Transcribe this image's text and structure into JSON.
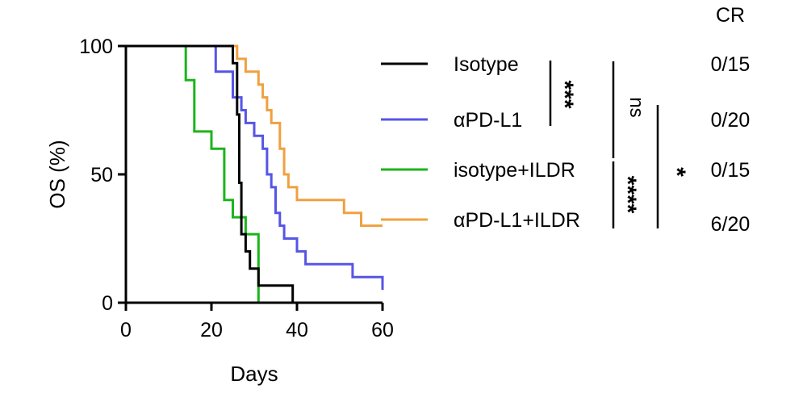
{
  "chart_data": {
    "type": "line",
    "subtype": "kaplan-meier survival curve",
    "xlabel": "Days",
    "ylabel": "OS (%)",
    "xlim": [
      0,
      60
    ],
    "ylim": [
      0,
      100
    ],
    "xticks": [
      "0",
      "20",
      "40",
      "60"
    ],
    "yticks": [
      "0",
      "50",
      "100"
    ],
    "grid": false,
    "legend_position": "right",
    "cr_header": "CR",
    "series": [
      {
        "name": "Isotype",
        "color": "#000000",
        "cr": "0/15",
        "steps": [
          [
            0,
            100
          ],
          [
            25,
            100
          ],
          [
            25,
            93.3
          ],
          [
            26,
            93.3
          ],
          [
            26,
            73.3
          ],
          [
            26.5,
            73.3
          ],
          [
            26.5,
            46.7
          ],
          [
            27,
            46.7
          ],
          [
            27,
            26.7
          ],
          [
            28,
            26.7
          ],
          [
            28,
            20
          ],
          [
            29,
            20
          ],
          [
            29,
            13.3
          ],
          [
            31,
            13.3
          ],
          [
            31,
            6.7
          ],
          [
            39,
            6.7
          ],
          [
            39,
            0
          ]
        ]
      },
      {
        "name": "αPD-L1",
        "color": "#5555e6",
        "cr": "0/20",
        "steps": [
          [
            0,
            100
          ],
          [
            21,
            100
          ],
          [
            21,
            90
          ],
          [
            25,
            90
          ],
          [
            25,
            80
          ],
          [
            27,
            80
          ],
          [
            27,
            75
          ],
          [
            28,
            75
          ],
          [
            28,
            70
          ],
          [
            30,
            70
          ],
          [
            30,
            65
          ],
          [
            32,
            65
          ],
          [
            32,
            60
          ],
          [
            33,
            60
          ],
          [
            33,
            50
          ],
          [
            34,
            50
          ],
          [
            34,
            45
          ],
          [
            35,
            45
          ],
          [
            35,
            35
          ],
          [
            36,
            35
          ],
          [
            36,
            30
          ],
          [
            37,
            30
          ],
          [
            37,
            25
          ],
          [
            40,
            25
          ],
          [
            40,
            20
          ],
          [
            42,
            20
          ],
          [
            42,
            15
          ],
          [
            53,
            15
          ],
          [
            53,
            10
          ],
          [
            60,
            10
          ],
          [
            60,
            5
          ]
        ]
      },
      {
        "name": "isotype+ILDR",
        "color": "#1bb51b",
        "cr": "0/15",
        "steps": [
          [
            0,
            100
          ],
          [
            14,
            100
          ],
          [
            14,
            86.7
          ],
          [
            16,
            86.7
          ],
          [
            16,
            66.7
          ],
          [
            20,
            66.7
          ],
          [
            20,
            60
          ],
          [
            23,
            60
          ],
          [
            23,
            40
          ],
          [
            25,
            40
          ],
          [
            25,
            33.3
          ],
          [
            28,
            33.3
          ],
          [
            28,
            26.7
          ],
          [
            31,
            26.7
          ],
          [
            31,
            0
          ]
        ]
      },
      {
        "name": "αPD-L1+ILDR",
        "color": "#f0a040",
        "cr": "6/20",
        "steps": [
          [
            0,
            100
          ],
          [
            26,
            100
          ],
          [
            26,
            95
          ],
          [
            28,
            95
          ],
          [
            28,
            90
          ],
          [
            31,
            90
          ],
          [
            31,
            85
          ],
          [
            32,
            85
          ],
          [
            32,
            80
          ],
          [
            33,
            80
          ],
          [
            33,
            75
          ],
          [
            34,
            75
          ],
          [
            34,
            70
          ],
          [
            36,
            70
          ],
          [
            36,
            60
          ],
          [
            37,
            60
          ],
          [
            37,
            50
          ],
          [
            38,
            50
          ],
          [
            38,
            45
          ],
          [
            40,
            45
          ],
          [
            40,
            40
          ],
          [
            51,
            40
          ],
          [
            51,
            35
          ],
          [
            55,
            35
          ],
          [
            55,
            30
          ],
          [
            60,
            30
          ]
        ]
      }
    ],
    "comparisons": [
      {
        "label": "***",
        "between": [
          "Isotype",
          "αPD-L1"
        ]
      },
      {
        "label": "ns",
        "between": [
          "Isotype",
          "isotype+ILDR"
        ]
      },
      {
        "label": "****",
        "between": [
          "isotype+ILDR",
          "αPD-L1+ILDR"
        ]
      },
      {
        "label": "*",
        "between": [
          "αPD-L1",
          "αPD-L1+ILDR"
        ]
      }
    ]
  }
}
